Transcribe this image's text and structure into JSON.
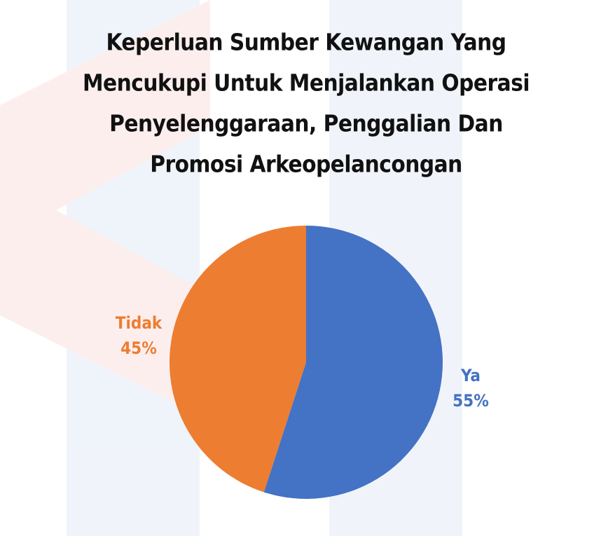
{
  "chart_data": {
    "type": "pie",
    "title": [
      "Keperluan Sumber Kewangan Yang",
      "Mencukupi Untuk Menjalankan Operasi",
      "Penyelenggaraan, Penggalian Dan",
      "Promosi Arkeopelancongan"
    ],
    "categories": [
      "Ya",
      "Tidak"
    ],
    "values": [
      55,
      45
    ],
    "value_labels": [
      "55%",
      "45%"
    ],
    "colors": [
      "#4472c4",
      "#ed7d31"
    ]
  }
}
